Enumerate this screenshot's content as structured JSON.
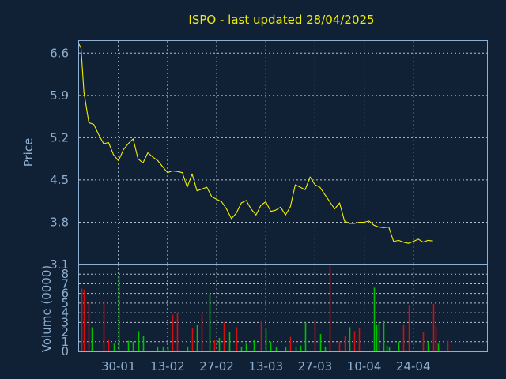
{
  "colors": {
    "background": "#102035",
    "frame": "#8fb0d0",
    "grid": "#b8c4d0",
    "price_line": "#f0f000",
    "volume_up": "#00c000",
    "volume_down": "#d01010",
    "text": "#8fb0d0",
    "title": "#f0f000"
  },
  "chart_data": [
    {
      "type": "line",
      "title": "ISPO - last updated 28/04/2025",
      "ylabel": "Price",
      "ylim": [
        3.1,
        6.8
      ],
      "y_ticks": [
        {
          "value": 6.6,
          "label": "6.6"
        },
        {
          "value": 5.9,
          "label": "5.9"
        },
        {
          "value": 5.2,
          "label": "5.2"
        },
        {
          "value": 4.5,
          "label": "4.5"
        },
        {
          "value": 3.8,
          "label": "3.8"
        },
        {
          "value": 3.1,
          "label": "3.1"
        }
      ],
      "grid": true,
      "x_range": [
        0,
        83
      ],
      "x_ticks": [
        {
          "index": 8,
          "label": "30-01"
        },
        {
          "index": 18,
          "label": "13-02"
        },
        {
          "index": 28,
          "label": "27-02"
        },
        {
          "index": 38,
          "label": "13-03"
        },
        {
          "index": 48,
          "label": "27-03"
        },
        {
          "index": 58,
          "label": "10-04"
        },
        {
          "index": 68,
          "label": "24-04"
        }
      ],
      "x": [
        0,
        0.4,
        1,
        2,
        3,
        4,
        5,
        6,
        7,
        8,
        8.5,
        9,
        10,
        11,
        12,
        13,
        14,
        15,
        16,
        17,
        18,
        19,
        20,
        21,
        22,
        23,
        24,
        25,
        26,
        27,
        28,
        29,
        30,
        31,
        32,
        33,
        34,
        35,
        36,
        37,
        38,
        39,
        40,
        41,
        42,
        43,
        44,
        45,
        46,
        47,
        48,
        49,
        50,
        51,
        52,
        53,
        54,
        55,
        56,
        57,
        58,
        59,
        60,
        61,
        62,
        63,
        64,
        65,
        66,
        67,
        68,
        69,
        70,
        71,
        72
      ],
      "series": [
        {
          "values": [
            6.75,
            6.68,
            5.95,
            5.45,
            5.42,
            5.25,
            5.1,
            5.12,
            4.92,
            4.82,
            4.9,
            5.0,
            5.1,
            5.18,
            4.85,
            4.78,
            4.95,
            4.88,
            4.82,
            4.72,
            4.62,
            4.65,
            4.64,
            4.62,
            4.38,
            4.6,
            4.32,
            4.35,
            4.38,
            4.22,
            4.18,
            4.14,
            4.02,
            3.86,
            3.95,
            4.12,
            4.16,
            4.02,
            3.92,
            4.08,
            4.14,
            3.98,
            4.0,
            4.05,
            3.92,
            4.06,
            4.42,
            4.38,
            4.34,
            4.55,
            4.42,
            4.38,
            4.26,
            4.14,
            4.02,
            4.12,
            3.82,
            3.78,
            3.78,
            3.8,
            3.8,
            3.82,
            3.75,
            3.72,
            3.71,
            3.72,
            3.48,
            3.5,
            3.47,
            3.45,
            3.48,
            3.52,
            3.47,
            3.5,
            3.49
          ]
        }
      ]
    },
    {
      "type": "bar",
      "ylabel": "Volume (0000)",
      "ylim": [
        0,
        9
      ],
      "y_ticks": [
        {
          "value": 0,
          "label": "0"
        },
        {
          "value": 1,
          "label": "1"
        },
        {
          "value": 2,
          "label": "2"
        },
        {
          "value": 3,
          "label": "3"
        },
        {
          "value": 4,
          "label": "4"
        },
        {
          "value": 5,
          "label": "5"
        },
        {
          "value": 6,
          "label": "6"
        },
        {
          "value": 7,
          "label": "7"
        },
        {
          "value": 8,
          "label": "8"
        }
      ],
      "bars": [
        {
          "x": 0.5,
          "v": 6.5,
          "d": "down"
        },
        {
          "x": 1,
          "v": 6.4,
          "d": "down"
        },
        {
          "x": 2,
          "v": 5.1,
          "d": "down"
        },
        {
          "x": 2.5,
          "v": 2.5,
          "d": "up"
        },
        {
          "x": 5,
          "v": 5.2,
          "d": "down"
        },
        {
          "x": 6,
          "v": 1.2,
          "d": "down"
        },
        {
          "x": 7,
          "v": 0.8,
          "d": "up"
        },
        {
          "x": 8,
          "v": 7.8,
          "d": "up"
        },
        {
          "x": 10,
          "v": 1.1,
          "d": "up"
        },
        {
          "x": 11,
          "v": 1.0,
          "d": "up"
        },
        {
          "x": 12,
          "v": 2.1,
          "d": "up"
        },
        {
          "x": 13,
          "v": 1.6,
          "d": "up"
        },
        {
          "x": 16,
          "v": 0.5,
          "d": "up"
        },
        {
          "x": 17,
          "v": 0.5,
          "d": "up"
        },
        {
          "x": 18,
          "v": 0.5,
          "d": "up"
        },
        {
          "x": 19,
          "v": 3.8,
          "d": "down"
        },
        {
          "x": 20,
          "v": 4.0,
          "d": "down"
        },
        {
          "x": 22,
          "v": 0.5,
          "d": "up"
        },
        {
          "x": 23,
          "v": 2.4,
          "d": "down"
        },
        {
          "x": 24,
          "v": 2.7,
          "d": "up"
        },
        {
          "x": 25,
          "v": 3.9,
          "d": "down"
        },
        {
          "x": 26.5,
          "v": 6.0,
          "d": "up"
        },
        {
          "x": 27.5,
          "v": 1.2,
          "d": "down"
        },
        {
          "x": 28.5,
          "v": 1.4,
          "d": "up"
        },
        {
          "x": 29.5,
          "v": 3.0,
          "d": "down"
        },
        {
          "x": 30.5,
          "v": 2.0,
          "d": "up"
        },
        {
          "x": 32,
          "v": 2.5,
          "d": "down"
        },
        {
          "x": 33,
          "v": 0.5,
          "d": "up"
        },
        {
          "x": 34,
          "v": 0.8,
          "d": "up"
        },
        {
          "x": 35.5,
          "v": 1.2,
          "d": "up"
        },
        {
          "x": 37,
          "v": 3.2,
          "d": "down"
        },
        {
          "x": 38,
          "v": 2.3,
          "d": "up"
        },
        {
          "x": 39,
          "v": 1.0,
          "d": "up"
        },
        {
          "x": 40,
          "v": 0.4,
          "d": "up"
        },
        {
          "x": 42,
          "v": 0.5,
          "d": "up"
        },
        {
          "x": 43,
          "v": 1.5,
          "d": "down"
        },
        {
          "x": 44,
          "v": 0.4,
          "d": "up"
        },
        {
          "x": 45,
          "v": 0.6,
          "d": "up"
        },
        {
          "x": 46,
          "v": 3.0,
          "d": "up"
        },
        {
          "x": 48,
          "v": 3.1,
          "d": "down"
        },
        {
          "x": 49,
          "v": 1.8,
          "d": "up"
        },
        {
          "x": 50,
          "v": 0.5,
          "d": "up"
        },
        {
          "x": 51,
          "v": 8.9,
          "d": "down"
        },
        {
          "x": 53,
          "v": 1.0,
          "d": "down"
        },
        {
          "x": 54,
          "v": 1.6,
          "d": "down"
        },
        {
          "x": 55,
          "v": 2.5,
          "d": "up"
        },
        {
          "x": 56,
          "v": 2.1,
          "d": "down"
        },
        {
          "x": 57,
          "v": 2.4,
          "d": "down"
        },
        {
          "x": 60,
          "v": 6.6,
          "d": "up"
        },
        {
          "x": 60.5,
          "v": 2.8,
          "d": "up"
        },
        {
          "x": 61,
          "v": 3.0,
          "d": "up"
        },
        {
          "x": 62,
          "v": 3.2,
          "d": "up"
        },
        {
          "x": 62.5,
          "v": 0.6,
          "d": "up"
        },
        {
          "x": 63,
          "v": 0.4,
          "d": "up"
        },
        {
          "x": 65,
          "v": 1.0,
          "d": "up"
        },
        {
          "x": 66,
          "v": 2.8,
          "d": "down"
        },
        {
          "x": 67,
          "v": 4.8,
          "d": "down"
        },
        {
          "x": 70,
          "v": 2.0,
          "d": "down"
        },
        {
          "x": 71,
          "v": 1.0,
          "d": "up"
        },
        {
          "x": 72,
          "v": 4.9,
          "d": "down"
        },
        {
          "x": 72.5,
          "v": 2.6,
          "d": "down"
        },
        {
          "x": 73,
          "v": 0.8,
          "d": "up"
        },
        {
          "x": 75,
          "v": 1.1,
          "d": "down"
        }
      ]
    }
  ]
}
